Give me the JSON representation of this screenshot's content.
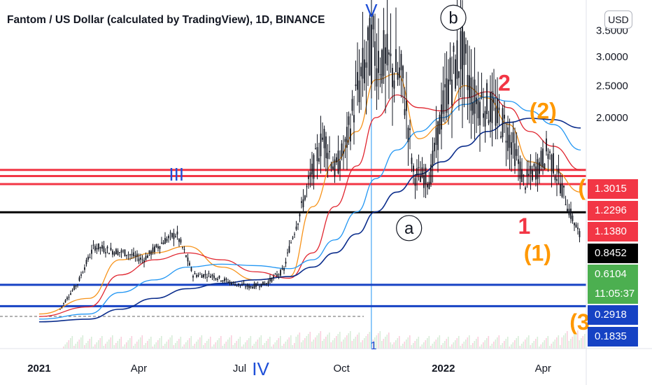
{
  "title": "Fantom / US Dollar (calculated by TradingView), 1D, BINANCE",
  "currency_button": "USD",
  "countdown": "11:05:37",
  "colors": {
    "candle": "#131722",
    "ma_orange": "#f7931a",
    "ma_red": "#e0242e",
    "ma_lightblue": "#2196f3",
    "ma_navy": "#0b2d8c",
    "wave_blue": "#1e4fd8",
    "wave_red": "#f23645",
    "wave_orange": "#ff9800",
    "level_red": "#f23645",
    "level_black": "#000000",
    "level_blue": "#1642c4",
    "tag_green": "#4caf50"
  },
  "chart_data": {
    "type": "line",
    "title": "Fantom / US Dollar (calculated by TradingView), 1D, BINANCE",
    "xlabel": "",
    "ylabel": "",
    "x_ticks": [
      "2021",
      "Apr",
      "Jul",
      "Oct",
      "2022",
      "Apr"
    ],
    "y_ticks": [
      "3.5000",
      "3.0000",
      "2.5000",
      "2.0000"
    ],
    "y_tick_values": [
      3.5,
      3.0,
      2.5,
      2.0
    ],
    "ylim": [
      0.1,
      4.0
    ],
    "grid": false,
    "series": [
      {
        "name": "",
        "style": "candles",
        "color": "#131722",
        "x": [
          "2021-01-01",
          "2021-01-20",
          "2021-02-05",
          "2021-02-20",
          "2021-03-05",
          "2021-03-20",
          "2021-04-05",
          "2021-04-25",
          "2021-05-05",
          "2021-05-20",
          "2021-06-05",
          "2021-06-25",
          "2021-07-10",
          "2021-07-25",
          "2021-08-10",
          "2021-08-25",
          "2021-09-05",
          "2021-09-15",
          "2021-09-25",
          "2021-10-05",
          "2021-10-15",
          "2021-10-28",
          "2021-11-10",
          "2021-11-25",
          "2021-12-05",
          "2021-12-20",
          "2022-01-05",
          "2022-01-17",
          "2022-01-28",
          "2022-02-10",
          "2022-02-25",
          "2022-03-05",
          "2022-03-15",
          "2022-03-28",
          "2022-04-05",
          "2022-04-15",
          "2022-04-25",
          "2022-05-05"
        ],
        "y": [
          0.16,
          0.17,
          0.3,
          0.55,
          0.52,
          0.5,
          0.45,
          0.6,
          0.65,
          0.35,
          0.35,
          0.3,
          0.28,
          0.3,
          0.38,
          0.85,
          1.3,
          1.75,
          1.3,
          1.6,
          2.4,
          3.2,
          2.9,
          2.6,
          1.25,
          1.2,
          2.5,
          3.1,
          2.3,
          2.2,
          1.9,
          1.6,
          1.15,
          1.35,
          1.55,
          1.2,
          0.85,
          0.6104
        ]
      },
      {
        "name": "",
        "style": "line",
        "color": "#f7931a",
        "x": [
          "2021-01-01",
          "2021-02-15",
          "2021-03-15",
          "2021-04-15",
          "2021-05-15",
          "2021-06-15",
          "2021-07-15",
          "2021-08-15",
          "2021-09-05",
          "2021-09-25",
          "2021-10-15",
          "2021-11-01",
          "2021-11-20",
          "2021-12-10",
          "2021-12-31",
          "2022-01-20",
          "2022-02-10",
          "2022-03-01",
          "2022-03-20",
          "2022-04-10",
          "2022-05-05"
        ],
        "y": [
          0.15,
          0.22,
          0.45,
          0.5,
          0.55,
          0.4,
          0.32,
          0.34,
          0.9,
          1.4,
          1.8,
          2.6,
          2.7,
          1.7,
          1.9,
          2.5,
          2.3,
          1.9,
          1.4,
          1.3,
          1.05
        ]
      },
      {
        "name": "",
        "style": "line",
        "color": "#e0242e",
        "x": [
          "2021-01-01",
          "2021-02-15",
          "2021-03-15",
          "2021-04-15",
          "2021-05-15",
          "2021-06-15",
          "2021-07-15",
          "2021-08-15",
          "2021-09-05",
          "2021-09-25",
          "2021-10-15",
          "2021-11-01",
          "2021-11-20",
          "2021-12-10",
          "2021-12-31",
          "2022-01-20",
          "2022-02-10",
          "2022-03-01",
          "2022-03-20",
          "2022-04-10",
          "2022-05-05"
        ],
        "y": [
          0.14,
          0.18,
          0.35,
          0.45,
          0.5,
          0.45,
          0.37,
          0.33,
          0.5,
          0.9,
          1.35,
          2.0,
          2.35,
          2.15,
          2.1,
          2.3,
          2.4,
          2.15,
          1.8,
          1.6,
          1.3
        ]
      },
      {
        "name": "",
        "style": "line",
        "color": "#2196f3",
        "x": [
          "2021-01-01",
          "2021-02-15",
          "2021-03-15",
          "2021-04-15",
          "2021-05-15",
          "2021-06-15",
          "2021-07-15",
          "2021-08-15",
          "2021-09-05",
          "2021-09-25",
          "2021-10-15",
          "2021-11-01",
          "2021-11-20",
          "2021-12-10",
          "2021-12-31",
          "2022-01-20",
          "2022-02-10",
          "2022-03-01",
          "2022-03-20",
          "2022-04-10",
          "2022-05-05"
        ],
        "y": [
          0.13,
          0.15,
          0.25,
          0.32,
          0.4,
          0.42,
          0.41,
          0.39,
          0.45,
          0.6,
          0.85,
          1.2,
          1.55,
          1.8,
          2.0,
          2.2,
          2.32,
          2.25,
          2.1,
          1.9,
          1.55
        ]
      },
      {
        "name": "",
        "style": "line",
        "color": "#0b2d8c",
        "x": [
          "2021-01-01",
          "2021-02-15",
          "2021-03-15",
          "2021-04-15",
          "2021-05-15",
          "2021-06-15",
          "2021-07-15",
          "2021-08-15",
          "2021-09-05",
          "2021-09-25",
          "2021-10-15",
          "2021-11-01",
          "2021-11-20",
          "2021-12-10",
          "2021-12-31",
          "2022-01-20",
          "2022-02-10",
          "2022-03-01",
          "2022-03-20",
          "2022-04-10",
          "2022-05-05"
        ],
        "y": [
          0.12,
          0.13,
          0.17,
          0.22,
          0.27,
          0.3,
          0.32,
          0.34,
          0.4,
          0.5,
          0.65,
          0.85,
          1.05,
          1.25,
          1.4,
          1.6,
          1.8,
          1.93,
          1.99,
          1.97,
          1.85
        ]
      }
    ],
    "levels": [
      {
        "name": "",
        "price": 1.3015,
        "label": "1.3015",
        "color": "#f23645"
      },
      {
        "name": "",
        "price": 1.2296,
        "label": "1.2296",
        "color": "#f23645"
      },
      {
        "name": "",
        "price": 1.138,
        "label": "1.1380",
        "color": "#f23645"
      },
      {
        "name": "",
        "price": 0.8452,
        "label": "0.8452",
        "color": "#000000"
      },
      {
        "name": "",
        "price": 0.2918,
        "label": "0.2918",
        "color": "#1642c4"
      },
      {
        "name": "",
        "price": 0.1835,
        "label": "0.1835",
        "color": "#1642c4"
      }
    ],
    "last_price": {
      "price": 0.6104,
      "label": "0.6104"
    },
    "wave_labels": [
      {
        "text": "V",
        "date": "2021-10-28",
        "price": 3.9,
        "color": "#1e4fd8"
      },
      {
        "text": "III",
        "date": "2021-05-05",
        "price": 1.25,
        "color": "#1e4fd8"
      },
      {
        "text": "IV",
        "date": "2021-07-20",
        "price": 0.01,
        "color": "#1e4fd8"
      },
      {
        "text": "b",
        "date": "2022-01-10",
        "price": 3.75,
        "color": "#131722",
        "circled": true
      },
      {
        "text": "a",
        "date": "2021-12-01",
        "price": 0.7,
        "color": "#131722",
        "circled": true
      },
      {
        "text": "2",
        "date": "2022-02-25",
        "price": 2.55,
        "color": "#f23645"
      },
      {
        "text": "1",
        "date": "2022-03-15",
        "price": 0.72,
        "color": "#f23645"
      },
      {
        "text": "(2)",
        "date": "2022-04-01",
        "price": 2.1,
        "color": "#ff9800"
      },
      {
        "text": "(1)",
        "date": "2022-03-27",
        "price": 0.5,
        "color": "#ff9800"
      },
      {
        "text": "(",
        "date": "2022-05-06",
        "price": 1.1,
        "color": "#ff9800"
      },
      {
        "text": "(3",
        "date": "2022-05-04",
        "price": 0.12,
        "color": "#ff9800"
      },
      {
        "text": "1",
        "date": "2021-10-30",
        "price": 0.05,
        "color": "#1e4fd8"
      }
    ],
    "vertical_marker": {
      "date": "2021-10-28",
      "color": "#2196f3"
    }
  }
}
